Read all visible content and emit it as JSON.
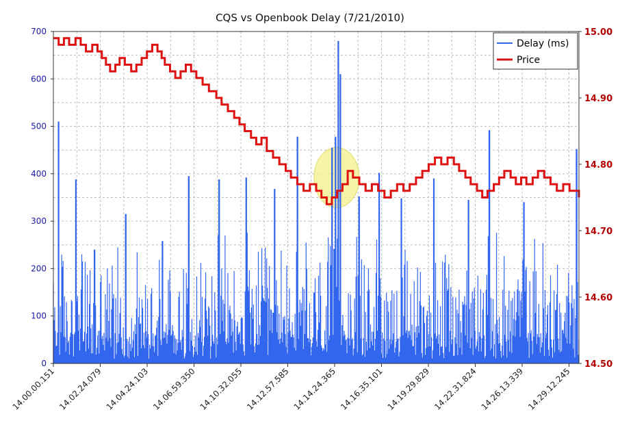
{
  "chart_data": {
    "type": "bar+line",
    "title": "CQS vs Openbook Delay (7/21/2010)",
    "x_tick_labels": [
      "14.00.00.151",
      "14.02.24.079",
      "14.04.24.103",
      "14.06.59.350",
      "14.10.32.055",
      "14.12.57.585",
      "14.14.24.365",
      "14.16.35.101",
      "14.19.29.829",
      "14.22.31.824",
      "14.26.13.339",
      "14.29.12.245"
    ],
    "left_axis": {
      "ticks": [
        "0",
        "100",
        "200",
        "300",
        "400",
        "500",
        "600",
        "700"
      ],
      "ylim": [
        0,
        700
      ],
      "color": "#1a1aa6"
    },
    "right_axis": {
      "ticks": [
        "14.50",
        "14.60",
        "14.70",
        "14.80",
        "14.90",
        "15.00"
      ],
      "ylim": [
        14.5,
        15.0
      ],
      "color": "#b30000"
    },
    "grid": true,
    "legend": {
      "position": "top-right",
      "entries": [
        "Delay (ms)",
        "Price"
      ]
    },
    "series": [
      {
        "name": "Delay (ms)",
        "kind": "bar",
        "axis": "left",
        "color": "#3366ee",
        "peaks": [
          {
            "x": 0.01,
            "y": 510
          },
          {
            "x": 0.043,
            "y": 388
          },
          {
            "x": 0.078,
            "y": 240
          },
          {
            "x": 0.138,
            "y": 315
          },
          {
            "x": 0.208,
            "y": 258
          },
          {
            "x": 0.258,
            "y": 395
          },
          {
            "x": 0.315,
            "y": 388
          },
          {
            "x": 0.367,
            "y": 392
          },
          {
            "x": 0.421,
            "y": 368
          },
          {
            "x": 0.464,
            "y": 478
          },
          {
            "x": 0.53,
            "y": 455
          },
          {
            "x": 0.537,
            "y": 478
          },
          {
            "x": 0.542,
            "y": 680
          },
          {
            "x": 0.546,
            "y": 610
          },
          {
            "x": 0.582,
            "y": 352
          },
          {
            "x": 0.62,
            "y": 402
          },
          {
            "x": 0.662,
            "y": 348
          },
          {
            "x": 0.724,
            "y": 390
          },
          {
            "x": 0.79,
            "y": 345
          },
          {
            "x": 0.83,
            "y": 492
          },
          {
            "x": 0.895,
            "y": 340
          },
          {
            "x": 0.996,
            "y": 452
          }
        ]
      },
      {
        "name": "Price",
        "kind": "step-line",
        "axis": "right",
        "color": "#dd1111",
        "points": [
          [
            0.0,
            14.99
          ],
          [
            0.01,
            14.98
          ],
          [
            0.02,
            14.99
          ],
          [
            0.03,
            14.98
          ],
          [
            0.042,
            14.99
          ],
          [
            0.052,
            14.98
          ],
          [
            0.062,
            14.97
          ],
          [
            0.074,
            14.98
          ],
          [
            0.084,
            14.97
          ],
          [
            0.092,
            14.96
          ],
          [
            0.1,
            14.95
          ],
          [
            0.108,
            14.94
          ],
          [
            0.118,
            14.95
          ],
          [
            0.126,
            14.96
          ],
          [
            0.136,
            14.95
          ],
          [
            0.148,
            14.94
          ],
          [
            0.158,
            14.95
          ],
          [
            0.168,
            14.96
          ],
          [
            0.178,
            14.97
          ],
          [
            0.188,
            14.98
          ],
          [
            0.198,
            14.97
          ],
          [
            0.206,
            14.96
          ],
          [
            0.212,
            14.95
          ],
          [
            0.222,
            14.94
          ],
          [
            0.232,
            14.93
          ],
          [
            0.242,
            14.94
          ],
          [
            0.252,
            14.95
          ],
          [
            0.262,
            14.94
          ],
          [
            0.272,
            14.93
          ],
          [
            0.284,
            14.92
          ],
          [
            0.296,
            14.91
          ],
          [
            0.31,
            14.9
          ],
          [
            0.32,
            14.89
          ],
          [
            0.332,
            14.88
          ],
          [
            0.344,
            14.87
          ],
          [
            0.354,
            14.86
          ],
          [
            0.364,
            14.85
          ],
          [
            0.376,
            14.84
          ],
          [
            0.386,
            14.83
          ],
          [
            0.396,
            14.84
          ],
          [
            0.406,
            14.82
          ],
          [
            0.418,
            14.81
          ],
          [
            0.43,
            14.8
          ],
          [
            0.442,
            14.79
          ],
          [
            0.452,
            14.78
          ],
          [
            0.464,
            14.77
          ],
          [
            0.476,
            14.76
          ],
          [
            0.488,
            14.77
          ],
          [
            0.5,
            14.76
          ],
          [
            0.51,
            14.75
          ],
          [
            0.52,
            14.74
          ],
          [
            0.53,
            14.75
          ],
          [
            0.54,
            14.76
          ],
          [
            0.55,
            14.77
          ],
          [
            0.56,
            14.79
          ],
          [
            0.57,
            14.78
          ],
          [
            0.582,
            14.77
          ],
          [
            0.594,
            14.76
          ],
          [
            0.606,
            14.77
          ],
          [
            0.618,
            14.76
          ],
          [
            0.63,
            14.75
          ],
          [
            0.642,
            14.76
          ],
          [
            0.654,
            14.77
          ],
          [
            0.666,
            14.76
          ],
          [
            0.678,
            14.77
          ],
          [
            0.69,
            14.78
          ],
          [
            0.702,
            14.79
          ],
          [
            0.714,
            14.8
          ],
          [
            0.726,
            14.81
          ],
          [
            0.738,
            14.8
          ],
          [
            0.75,
            14.81
          ],
          [
            0.762,
            14.8
          ],
          [
            0.772,
            14.79
          ],
          [
            0.784,
            14.78
          ],
          [
            0.794,
            14.77
          ],
          [
            0.806,
            14.76
          ],
          [
            0.816,
            14.75
          ],
          [
            0.826,
            14.76
          ],
          [
            0.838,
            14.77
          ],
          [
            0.848,
            14.78
          ],
          [
            0.858,
            14.79
          ],
          [
            0.87,
            14.78
          ],
          [
            0.88,
            14.77
          ],
          [
            0.89,
            14.78
          ],
          [
            0.9,
            14.77
          ],
          [
            0.912,
            14.78
          ],
          [
            0.922,
            14.79
          ],
          [
            0.934,
            14.78
          ],
          [
            0.946,
            14.77
          ],
          [
            0.958,
            14.76
          ],
          [
            0.97,
            14.77
          ],
          [
            0.982,
            14.76
          ],
          [
            0.992,
            14.76
          ],
          [
            1.0,
            14.75
          ]
        ]
      }
    ],
    "annotation": {
      "shape": "ellipse",
      "x": 0.539,
      "y": 14.78,
      "fill": "#f5f08a"
    }
  }
}
